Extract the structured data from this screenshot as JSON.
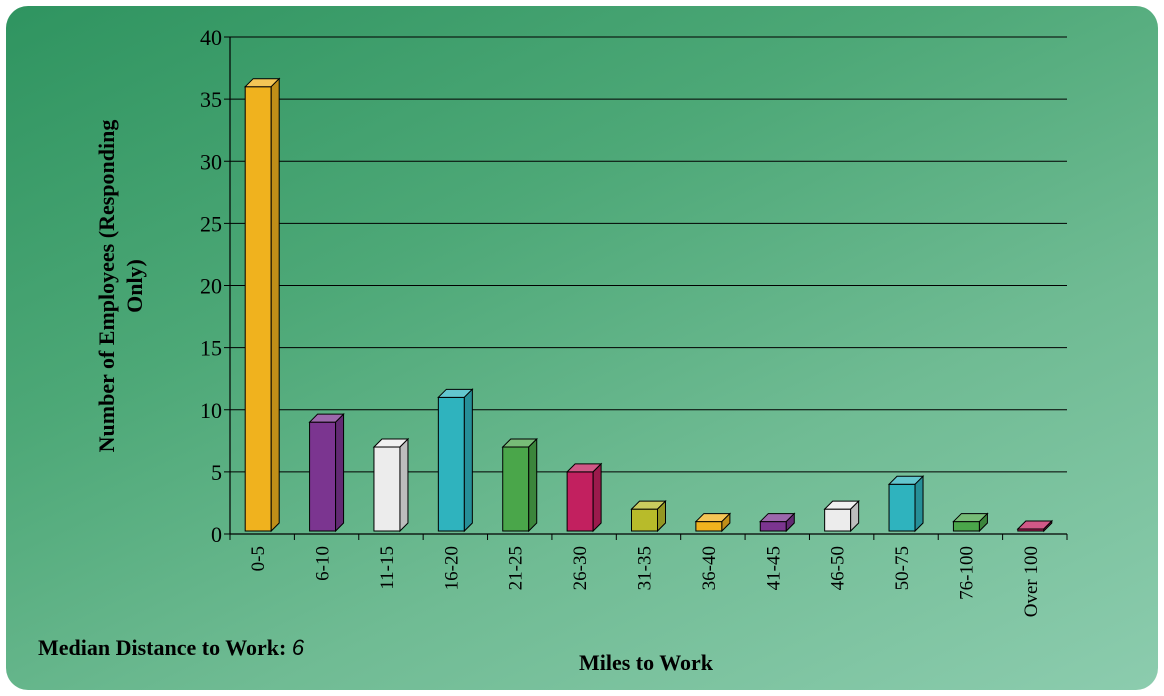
{
  "chart_data": {
    "type": "bar",
    "categories": [
      "0-5",
      "6-10",
      "11-15",
      "16-20",
      "21-25",
      "26-30",
      "31-35",
      "36-40",
      "41-45",
      "46-50",
      "50-75",
      "76-100",
      "Over 100"
    ],
    "values": [
      36,
      9,
      7,
      11,
      7,
      5,
      2,
      1,
      1,
      2,
      4,
      1,
      0
    ],
    "xlabel": "Miles to Work",
    "ylabel": "Number of Employees (Responding Only)",
    "ylim": [
      0,
      40
    ],
    "yticks": [
      0,
      5,
      10,
      15,
      20,
      25,
      30,
      35,
      40
    ],
    "grid": true,
    "bar_colors": [
      "#f0b21e",
      "#7b3590",
      "#ececec",
      "#2fb3be",
      "#4aa64a",
      "#c2205f",
      "#b8bb2a",
      "#f0b21e",
      "#7b3590",
      "#ececec",
      "#2fb3be",
      "#4aa64a",
      "#c2205f"
    ]
  },
  "annotation": {
    "label": "Median Distance to Work:",
    "value": "6"
  }
}
